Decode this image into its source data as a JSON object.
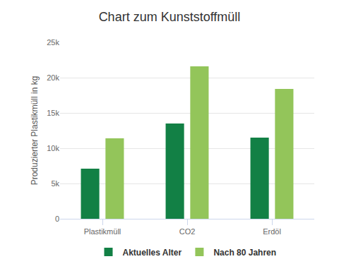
{
  "chart_data": {
    "type": "bar",
    "title": "Chart zum Kunststoffmüll",
    "y_label": "Produzierter Plastikmüll in kg",
    "categories": [
      "Plastikmüll",
      "CO2",
      "Erdöl"
    ],
    "series": [
      {
        "name": "Aktuelles Alter",
        "color": "#128045",
        "values": [
          7100,
          13500,
          11500
        ]
      },
      {
        "name": "Nach 80 Jahren",
        "color": "#93c55a",
        "values": [
          11400,
          21600,
          18400
        ]
      }
    ],
    "ylim": [
      0,
      25000
    ],
    "yticks": [
      {
        "value": 0,
        "label": "0"
      },
      {
        "value": 5000,
        "label": "5k"
      },
      {
        "value": 10000,
        "label": "10k"
      },
      {
        "value": 15000,
        "label": "15k"
      },
      {
        "value": 20000,
        "label": "20k"
      },
      {
        "value": 25000,
        "label": "25k"
      }
    ],
    "grid": true,
    "legend": "bottom"
  }
}
